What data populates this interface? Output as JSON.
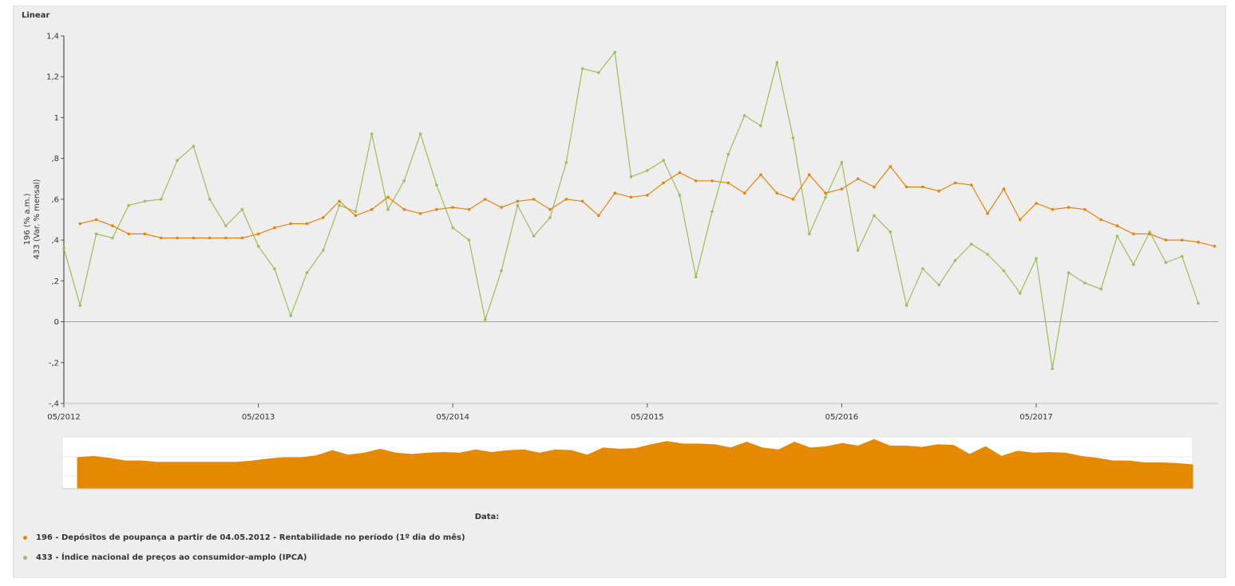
{
  "panel": {
    "title": "Linear"
  },
  "colors": {
    "series1": "#e2850f",
    "series2": "#9dbe5c",
    "navigator": "#e58a00",
    "grid": "#ededed",
    "zero_line": "#a0a0a0"
  },
  "navigator": {
    "title": "Data:"
  },
  "chart_data": {
    "type": "line",
    "ylabel_lines": [
      "196 (% a.m.)",
      "433 (Var. % mensal)"
    ],
    "ylim": [
      -0.4,
      1.4
    ],
    "yticks": [
      -0.4,
      -0.2,
      0,
      0.2,
      0.4,
      0.6,
      0.8,
      1,
      1.2,
      1.4
    ],
    "ytick_labels": [
      "-,4",
      "-,2",
      "0",
      ",2",
      ",4",
      ",6",
      ",8",
      "1",
      "1,2",
      "1,4"
    ],
    "xrange": [
      "2012-05",
      "2017-11"
    ],
    "xtick_labels": [
      "05/2012",
      "05/2013",
      "05/2014",
      "05/2015",
      "05/2016",
      "05/2017"
    ],
    "xtick_dates": [
      "2012-05",
      "2013-05",
      "2014-05",
      "2015-05",
      "2016-05",
      "2017-05"
    ],
    "grid": true,
    "legend_position": "bottom-left",
    "series": [
      {
        "name": "196 - Depósitos de poupança a partir de 04.05.2012 - Rentabilidade no período (1º dia do mês)",
        "start": "2012-06",
        "values": [
          0.48,
          0.5,
          0.47,
          0.43,
          0.43,
          0.41,
          0.41,
          0.41,
          0.41,
          0.41,
          0.41,
          0.43,
          0.46,
          0.48,
          0.48,
          0.51,
          0.59,
          0.52,
          0.55,
          0.61,
          0.55,
          0.53,
          0.55,
          0.56,
          0.55,
          0.6,
          0.56,
          0.59,
          0.6,
          0.55,
          0.6,
          0.59,
          0.52,
          0.63,
          0.61,
          0.62,
          0.68,
          0.73,
          0.69,
          0.69,
          0.68,
          0.63,
          0.72,
          0.63,
          0.6,
          0.72,
          0.63,
          0.65,
          0.7,
          0.66,
          0.76,
          0.66,
          0.66,
          0.64,
          0.68,
          0.67,
          0.53,
          0.65,
          0.5,
          0.58,
          0.55,
          0.56,
          0.55,
          0.5,
          0.47,
          0.43,
          0.43,
          0.4,
          0.4,
          0.39,
          0.37
        ]
      },
      {
        "name": "433 - Índice nacional de preços ao consumidor-amplo (IPCA)",
        "start": "2012-05",
        "values": [
          0.36,
          0.08,
          0.43,
          0.41,
          0.57,
          0.59,
          0.6,
          0.79,
          0.86,
          0.6,
          0.47,
          0.55,
          0.37,
          0.26,
          0.03,
          0.24,
          0.35,
          0.57,
          0.54,
          0.92,
          0.55,
          0.69,
          0.92,
          0.67,
          0.46,
          0.4,
          0.01,
          0.25,
          0.57,
          0.42,
          0.51,
          0.78,
          1.24,
          1.22,
          1.32,
          0.71,
          0.74,
          0.79,
          0.62,
          0.22,
          0.54,
          0.82,
          1.01,
          0.96,
          1.27,
          0.9,
          0.43,
          0.61,
          0.78,
          0.35,
          0.52,
          0.44,
          0.08,
          0.26,
          0.18,
          0.3,
          0.38,
          0.33,
          0.25,
          0.14,
          0.31,
          -0.23,
          0.24,
          0.19,
          0.16,
          0.42,
          0.28,
          0.44,
          0.29,
          0.32,
          0.09
        ]
      }
    ]
  },
  "legend": {
    "items": [
      {
        "label": "196 - Depósitos de poupança a partir de 04.05.2012 - Rentabilidade no período (1º dia do mês)",
        "color": "#e2850f"
      },
      {
        "label": "433 - Índice nacional de preços ao consumidor-amplo (IPCA)",
        "color": "#9dbe5c"
      }
    ]
  }
}
